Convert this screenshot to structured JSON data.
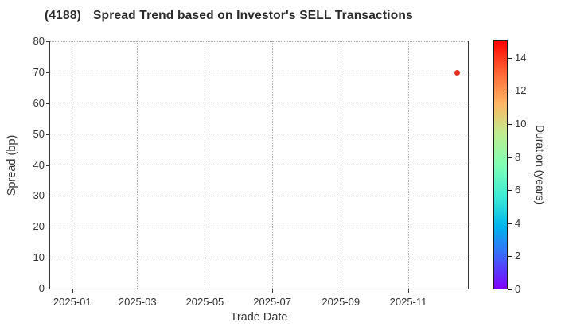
{
  "title": {
    "code": "(4188)",
    "text": "Spread Trend based on Investor's SELL Transactions"
  },
  "chart_data": {
    "type": "scatter",
    "title": "(4188) Spread Trend based on Investor's SELL Transactions",
    "xlabel": "Trade Date",
    "ylabel": "Spread (bp)",
    "x_ticks": [
      "2025-01",
      "2025-03",
      "2025-05",
      "2025-07",
      "2025-09",
      "2025-11"
    ],
    "xlim": [
      "2024-12-12",
      "2025-12-25"
    ],
    "y_ticks": [
      0,
      10,
      20,
      30,
      40,
      50,
      60,
      70,
      80
    ],
    "ylim": [
      0,
      80
    ],
    "grid": "dotted",
    "legend": "none",
    "points": [
      {
        "trade_date": "2025-12-15",
        "spread_bp": 69.9,
        "duration_years": 14.6
      }
    ],
    "colorbar": {
      "label": "Duration (years)",
      "ticks": [
        0,
        2,
        4,
        6,
        8,
        10,
        12,
        14
      ],
      "range": [
        0,
        15.1
      ],
      "colormap": "rainbow",
      "position": "right"
    }
  },
  "colors": {
    "point": "#ed2a1f",
    "grid": "#a9a9a9",
    "spine": "#3a3a3a",
    "text": "#333333",
    "title": "#2b2b2b",
    "rainbow_stops": [
      "#8000ff",
      "#4062fa",
      "#00b4ec",
      "#40ecd4",
      "#80ffb4",
      "#bfec8e",
      "#ffb462",
      "#ff6232",
      "#ff0000"
    ]
  }
}
